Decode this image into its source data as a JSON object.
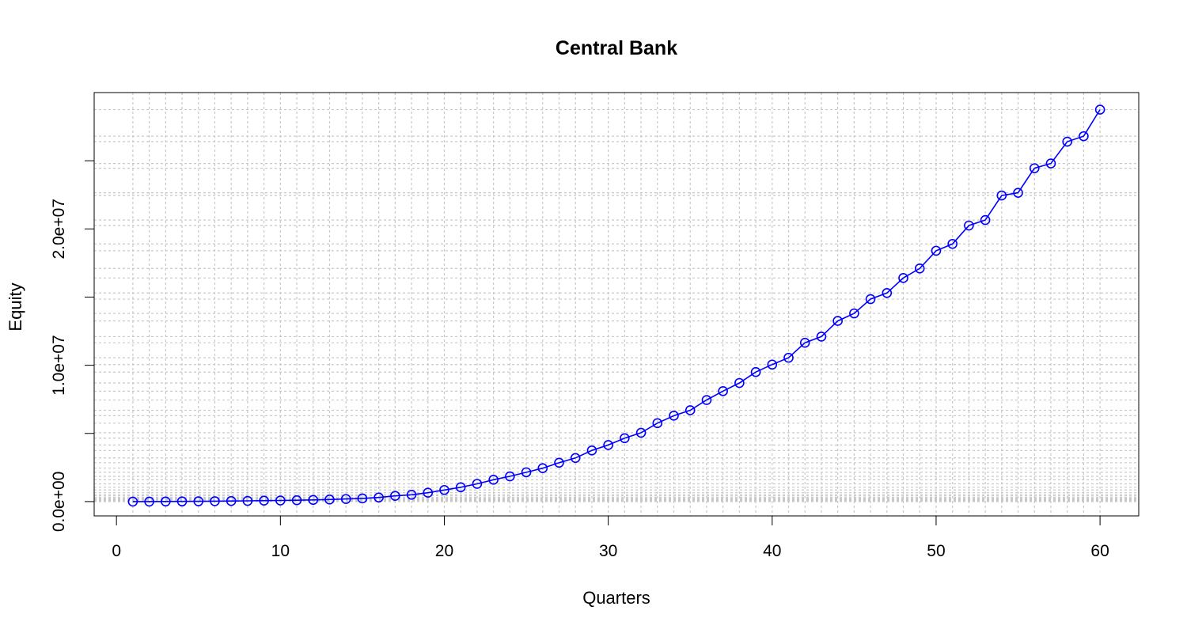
{
  "chart_data": {
    "type": "line",
    "title": "Central Bank",
    "xlabel": "Quarters",
    "ylabel": "Equity",
    "xlim": [
      -1.36,
      62.36
    ],
    "ylim": [
      -1050000,
      30000000
    ],
    "x_ticks": [
      0,
      10,
      20,
      30,
      40,
      50,
      60
    ],
    "x_tick_labels": [
      "0",
      "10",
      "20",
      "30",
      "40",
      "50",
      "60"
    ],
    "y_ticks": [
      0,
      5000000,
      10000000,
      15000000,
      20000000,
      25000000
    ],
    "y_tick_labels": [
      "0.0e+00",
      "",
      "1.0e+07",
      "",
      "2.0e+07",
      ""
    ],
    "grid": true,
    "series": [
      {
        "color": "#0000ff",
        "marker": "open-circle",
        "x": [
          1,
          2,
          3,
          4,
          5,
          6,
          7,
          8,
          9,
          10,
          11,
          12,
          13,
          14,
          15,
          16,
          17,
          18,
          19,
          20,
          21,
          22,
          23,
          24,
          25,
          26,
          27,
          28,
          29,
          30,
          31,
          32,
          33,
          34,
          35,
          36,
          37,
          38,
          39,
          40,
          41,
          42,
          43,
          44,
          45,
          46,
          47,
          48,
          49,
          50,
          51,
          52,
          53,
          54,
          55,
          56,
          57,
          58,
          59,
          60
        ],
        "values": [
          0,
          0,
          5000,
          10000,
          20000,
          30000,
          40000,
          50000,
          70000,
          80000,
          100000,
          120000,
          150000,
          190000,
          230000,
          300000,
          420000,
          500000,
          650000,
          850000,
          1050000,
          1300000,
          1600000,
          1850000,
          2150000,
          2450000,
          2850000,
          3200000,
          3750000,
          4150000,
          4650000,
          5050000,
          5750000,
          6300000,
          6700000,
          7450000,
          8100000,
          8700000,
          9500000,
          10050000,
          10550000,
          11650000,
          12100000,
          13250000,
          13800000,
          14850000,
          15300000,
          16400000,
          17100000,
          18400000,
          18900000,
          20250000,
          20650000,
          22450000,
          22650000,
          24450000,
          24800000,
          26400000,
          26800000,
          28750000
        ]
      }
    ]
  }
}
